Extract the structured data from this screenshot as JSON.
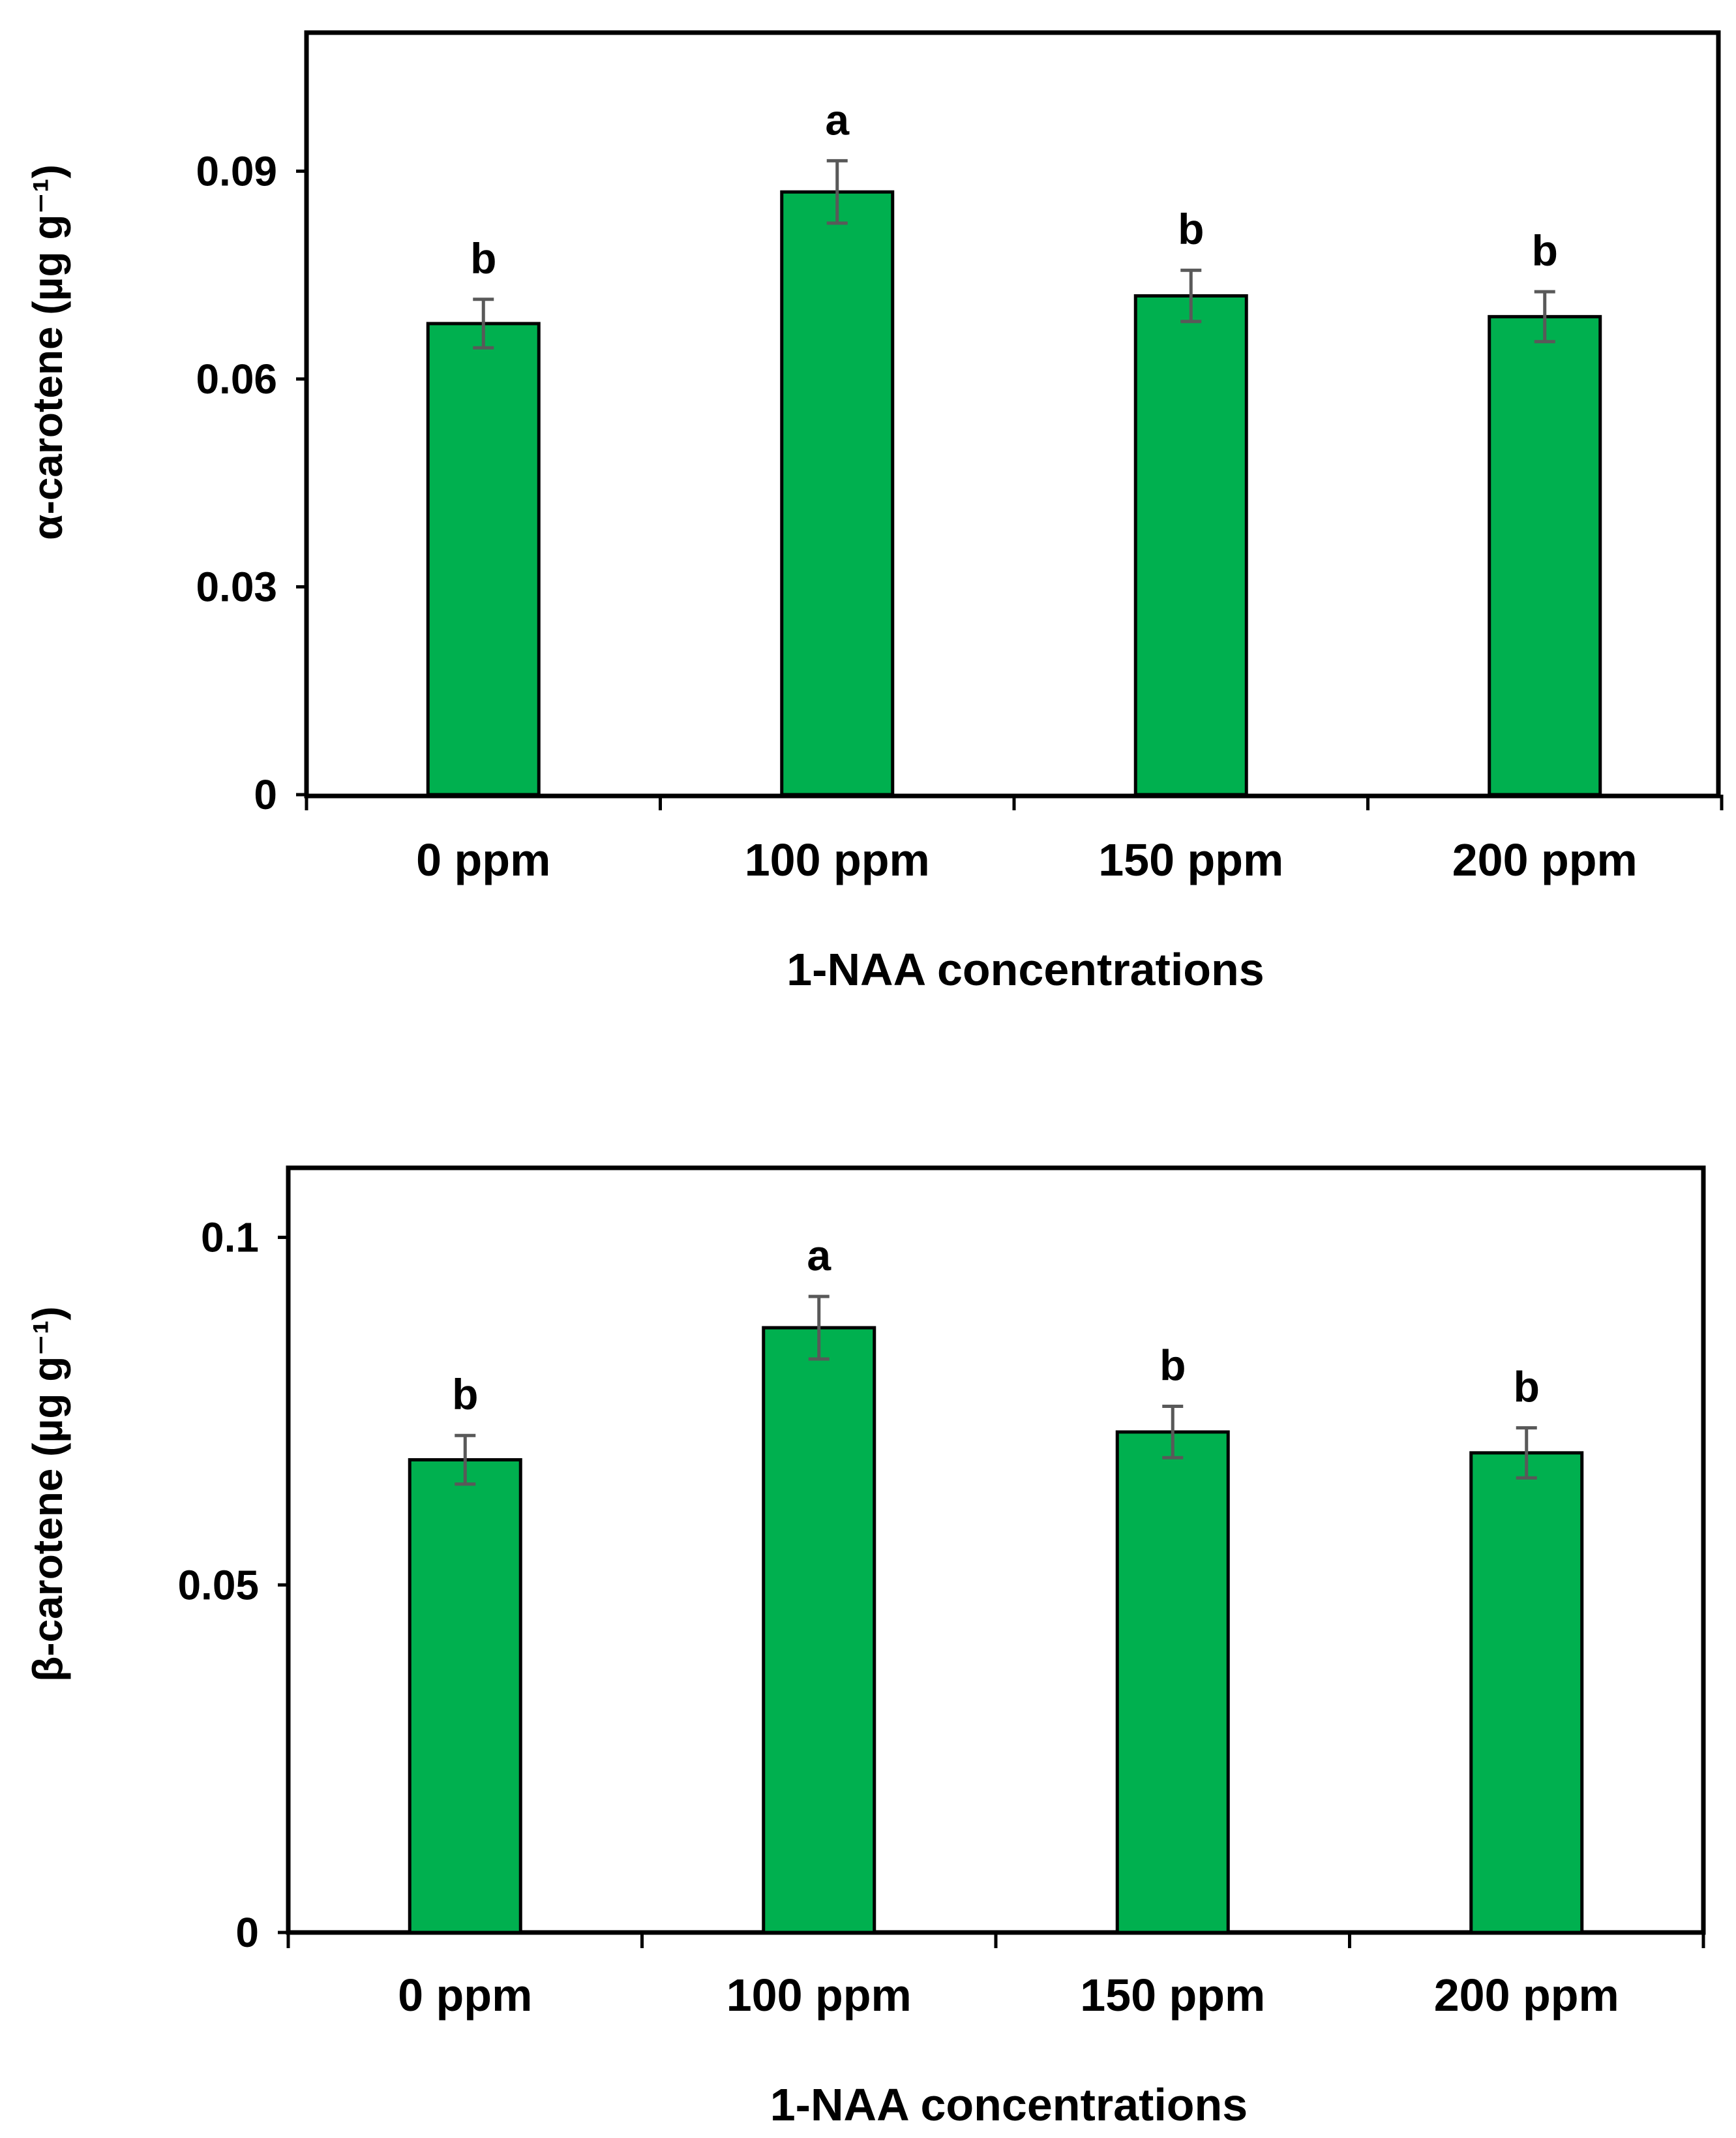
{
  "colors": {
    "bar_fill": "#00b04f",
    "bar_stroke": "#000000",
    "error_bar": "#595959",
    "axis": "#000000"
  },
  "chart_data": [
    {
      "type": "bar",
      "title": "",
      "xlabel": "1-NAA concentrations",
      "ylabel": "α-carotene (µg g⁻¹)",
      "categories": [
        "0 ppm",
        "100 ppm",
        "150 ppm",
        "200 ppm"
      ],
      "values": [
        0.068,
        0.087,
        0.072,
        0.069
      ],
      "errors": [
        0.0035,
        0.0045,
        0.0037,
        0.0036
      ],
      "significance_letters": [
        "b",
        "a",
        "b",
        "b"
      ],
      "yticks": [
        0,
        0.03,
        0.06,
        0.09
      ],
      "ytick_labels": [
        "0",
        "0.03",
        "0.06",
        "0.09"
      ],
      "ylim": [
        0,
        0.11
      ]
    },
    {
      "type": "bar",
      "title": "",
      "xlabel": "1-NAA concentrations",
      "ylabel": "β-carotene (µg g⁻¹)",
      "categories": [
        "0 ppm",
        "100 ppm",
        "150 ppm",
        "200 ppm"
      ],
      "values": [
        0.068,
        0.087,
        0.072,
        0.069
      ],
      "errors": [
        0.0035,
        0.0045,
        0.0037,
        0.0036
      ],
      "significance_letters": [
        "b",
        "a",
        "b",
        "b"
      ],
      "yticks": [
        0,
        0.05,
        0.1
      ],
      "ytick_labels": [
        "0",
        "0.05",
        "0.1"
      ],
      "ylim": [
        0,
        0.11
      ]
    }
  ]
}
